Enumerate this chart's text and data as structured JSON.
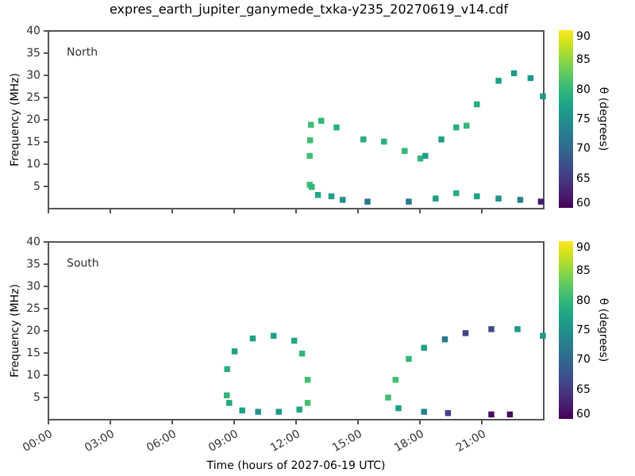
{
  "chart_data": [
    {
      "type": "scatter",
      "title": "expres_earth_jupiter_ganymede_txka-y235_20270619_v14.cdf",
      "ylabel": "Frequency (MHz)",
      "clabel": "θ (degrees)",
      "annotations": [
        "North"
      ],
      "tick_labels": "y",
      "x": [
        12.7,
        12.7,
        12.72,
        12.76,
        13.26,
        14.0,
        15.3,
        16.3,
        17.3,
        18.06,
        18.3,
        19.08,
        19.8,
        20.3,
        20.8,
        21.85,
        22.6,
        23.4,
        24.0,
        12.8,
        13.1,
        13.75,
        14.3,
        15.5,
        17.5,
        18.8,
        19.8,
        20.8,
        21.85,
        22.9,
        23.9
      ],
      "values": [
        5.2,
        11.7,
        15.2,
        18.7,
        19.6,
        18.1,
        15.4,
        14.9,
        12.8,
        11.1,
        11.7,
        15.4,
        18.1,
        18.5,
        23.3,
        28.6,
        30.3,
        29.2,
        25.1,
        4.7,
        2.9,
        2.6,
        1.8,
        1.4,
        1.4,
        2.1,
        3.3,
        2.6,
        2.1,
        1.8,
        1.4
      ],
      "cvalues": [
        81,
        81,
        81,
        81,
        80,
        79,
        79,
        79,
        80,
        80,
        77,
        77,
        79,
        80,
        79,
        77,
        76,
        76,
        76,
        80,
        78,
        77,
        75,
        72,
        72,
        77,
        79,
        77,
        75,
        73,
        62
      ],
      "xlim": [
        0,
        24
      ],
      "ylim": [
        0,
        40
      ],
      "yticks": [
        5,
        10,
        15,
        20,
        25,
        30,
        35,
        40
      ],
      "xticks": [
        {
          "value": 0,
          "label": null
        },
        {
          "value": 3,
          "label": null
        },
        {
          "value": 6,
          "label": null
        },
        {
          "value": 9,
          "label": null
        },
        {
          "value": 12,
          "label": null
        },
        {
          "value": 15,
          "label": null
        },
        {
          "value": 18,
          "label": null
        },
        {
          "value": 21,
          "label": null
        }
      ],
      "clim": [
        60,
        90
      ],
      "cticks": [
        60,
        65,
        70,
        75,
        80,
        85,
        90
      ]
    },
    {
      "type": "scatter",
      "xlabel": "Time (hours of 2027-06-19 UTC)",
      "ylabel": "Frequency (MHz)",
      "clabel": "θ (degrees)",
      "annotations": [
        "South"
      ],
      "x": [
        8.68,
        8.7,
        9.06,
        9.94,
        10.95,
        11.95,
        12.33,
        12.6,
        12.6,
        12.2,
        11.2,
        10.2,
        9.43,
        8.8,
        16.5,
        16.86,
        17.5,
        18.24,
        19.25,
        20.25,
        21.5,
        22.77,
        24.0,
        17.0,
        18.24,
        19.4,
        21.5,
        22.4
      ],
      "values": [
        5.3,
        11.2,
        15.2,
        18.1,
        18.7,
        17.6,
        14.7,
        8.8,
        3.6,
        2.1,
        1.6,
        1.6,
        1.9,
        3.6,
        4.8,
        8.8,
        13.5,
        16.0,
        17.9,
        19.3,
        20.2,
        20.2,
        18.7,
        2.4,
        1.6,
        1.3,
        1.0,
        1.0
      ],
      "cvalues": [
        80,
        79,
        77,
        77,
        77,
        78,
        80,
        81,
        81,
        78,
        76,
        76,
        77,
        78,
        81,
        81,
        80,
        77,
        72,
        66,
        67,
        76,
        76,
        77,
        73,
        66,
        61,
        61
      ],
      "xlim": [
        0,
        24
      ],
      "ylim": [
        0,
        40
      ],
      "yticks": [
        5,
        10,
        15,
        20,
        25,
        30,
        35,
        40
      ],
      "xticks": [
        {
          "value": 0,
          "label": "00:00"
        },
        {
          "value": 3,
          "label": "03:00"
        },
        {
          "value": 6,
          "label": "06:00"
        },
        {
          "value": 9,
          "label": "09:00"
        },
        {
          "value": 12,
          "label": "12:00"
        },
        {
          "value": 15,
          "label": "15:00"
        },
        {
          "value": 18,
          "label": "18:00"
        },
        {
          "value": 21,
          "label": "21:00"
        }
      ],
      "clim": [
        60,
        90
      ],
      "cticks": [
        60,
        65,
        70,
        75,
        80,
        85,
        90
      ]
    }
  ]
}
